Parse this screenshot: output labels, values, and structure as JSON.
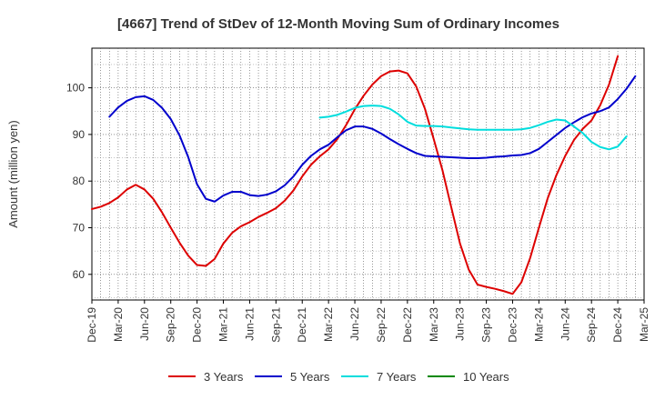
{
  "chart_data": {
    "type": "line",
    "title": "[4667]  Trend of StDev of 12-Month Moving Sum of Ordinary Incomes",
    "xlabel": "",
    "ylabel": "Amount (million yen)",
    "ylim": [
      54.5,
      108.5
    ],
    "yticks": [
      60,
      70,
      80,
      90,
      100
    ],
    "x_tick_labels": [
      "Dec-19",
      "Mar-20",
      "Jun-20",
      "Sep-20",
      "Dec-20",
      "Mar-21",
      "Jun-21",
      "Sep-21",
      "Dec-21",
      "Mar-22",
      "Jun-22",
      "Sep-22",
      "Dec-22",
      "Mar-23",
      "Jun-23",
      "Sep-23",
      "Dec-23",
      "Mar-24",
      "Jun-24",
      "Sep-24",
      "Dec-24",
      "Mar-25"
    ],
    "x_range_months": [
      0,
      63
    ],
    "grid": true,
    "legend_position": "bottom",
    "series": [
      {
        "name": "3 Years",
        "color": "#dd0000",
        "start_month": 0,
        "values": [
          74,
          74.5,
          75.3,
          76.5,
          78.2,
          79.2,
          78.2,
          76.2,
          73.3,
          70,
          66.8,
          64,
          62,
          61.8,
          63.3,
          66.6,
          68.9,
          70.3,
          71.2,
          72.3,
          73.2,
          74.2,
          75.8,
          78,
          81,
          83.5,
          85.3,
          86.8,
          89,
          92,
          95.4,
          98.3,
          100.7,
          102.5,
          103.5,
          103.7,
          103.1,
          100.3,
          95.5,
          89,
          82.3,
          74.4,
          66.6,
          61,
          57.8,
          57.3,
          56.9,
          56.4,
          55.8,
          58.3,
          63.5,
          70,
          76.3,
          81.3,
          85.4,
          88.8,
          91.2,
          93,
          96.3,
          100.7,
          106.8
        ]
      },
      {
        "name": "5 Years",
        "color": "#0000cc",
        "start_month": 2,
        "values": [
          93.8,
          95.8,
          97.2,
          98,
          98.2,
          97.4,
          95.7,
          93.3,
          89.8,
          85.1,
          79.3,
          76.2,
          75.6,
          76.9,
          77.7,
          77.7,
          77,
          76.8,
          77.1,
          77.8,
          79.1,
          81,
          83.5,
          85.4,
          86.8,
          87.8,
          89.4,
          90.9,
          91.7,
          91.7,
          91.2,
          90.2,
          89,
          87.9,
          86.9,
          86,
          85.4,
          85.3,
          85.2,
          85.1,
          85,
          84.9,
          84.9,
          85,
          85.2,
          85.3,
          85.5,
          85.6,
          86,
          86.9,
          88.4,
          89.9,
          91.4,
          92.6,
          93.7,
          94.5,
          95,
          95.8,
          97.6,
          99.8,
          102.5
        ]
      },
      {
        "name": "7 Years",
        "color": "#00dddd",
        "start_month": 26,
        "values": [
          93.6,
          93.8,
          94.2,
          94.9,
          95.7,
          96.1,
          96.2,
          96.1,
          95.5,
          94.3,
          92.7,
          91.9,
          91.8,
          91.8,
          91.7,
          91.5,
          91.3,
          91.1,
          91,
          91,
          91,
          91,
          91,
          91.1,
          91.4,
          92,
          92.7,
          93.2,
          93,
          91.7,
          90.3,
          88.4,
          87.3,
          86.8,
          87.4,
          89.6
        ]
      },
      {
        "name": "10 Years",
        "color": "#008800",
        "start_month": 0,
        "values": []
      }
    ]
  }
}
